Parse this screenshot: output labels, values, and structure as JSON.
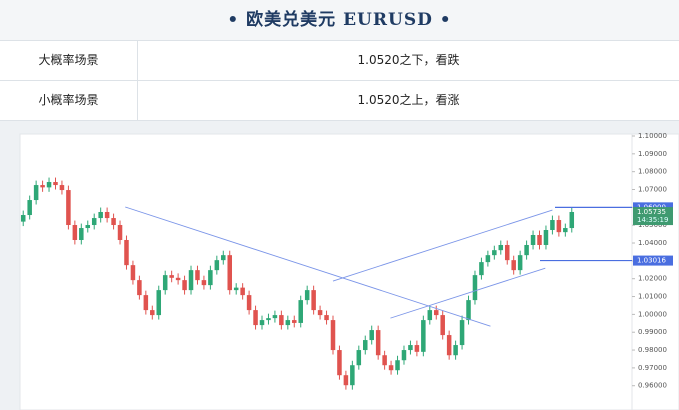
{
  "header": {
    "title": "• 欧美兑美元  EURUSD •"
  },
  "table": {
    "rows": [
      [
        "大概率场景",
        "1.0520之下，看跌"
      ],
      [
        "小概率场景",
        "1.0520之上，看涨"
      ]
    ]
  },
  "chart_data": {
    "type": "candlestick",
    "open": [
      1.052,
      1.0557,
      1.0641,
      1.0725,
      1.0712,
      1.0742,
      1.0725,
      1.0697,
      1.0501,
      1.0417,
      1.0484,
      1.0501,
      1.054,
      1.0574,
      1.054,
      1.0501,
      1.0417,
      1.0276,
      1.0192,
      1.0108,
      1.0024,
      0.9996,
      1.0136,
      1.022,
      1.0205,
      1.0192,
      1.0136,
      1.0248,
      1.0192,
      1.0164,
      1.0248,
      1.0304,
      1.0332,
      1.0136,
      1.015,
      1.0108,
      1.0024,
      0.994,
      0.9968,
      0.9979,
      0.9996,
      0.994,
      0.9968,
      0.9952,
      1.008,
      1.0136,
      1.0024,
      0.9996,
      0.9968,
      0.98,
      0.9659,
      0.9603,
      0.9715,
      0.98,
      0.9856,
      0.9912,
      0.9771,
      0.9715,
      0.9687,
      0.9743,
      0.98,
      0.9828,
      0.979,
      0.9968,
      1.0024,
      0.9996,
      0.9884,
      0.9771,
      0.9828,
      0.9968,
      1.008,
      1.022,
      1.0293,
      1.0332,
      1.036,
      1.0389,
      1.0304,
      1.0248,
      1.0332,
      1.0389,
      1.0445,
      1.0389,
      1.0473,
      1.0529,
      1.0461,
      1.0484
    ],
    "high": [
      1.0582,
      1.0666,
      1.075,
      1.075,
      1.0767,
      1.0767,
      1.075,
      1.0722,
      1.0526,
      1.0509,
      1.0526,
      1.0565,
      1.0599,
      1.0599,
      1.0565,
      1.0526,
      1.0442,
      1.0301,
      1.0217,
      1.0133,
      1.0049,
      1.0161,
      1.0245,
      1.0245,
      1.023,
      1.0217,
      1.0273,
      1.0273,
      1.0217,
      1.0273,
      1.0329,
      1.0357,
      1.0357,
      1.0175,
      1.0175,
      1.0133,
      1.0049,
      0.9993,
      1.0004,
      1.0021,
      1.0021,
      0.9993,
      0.9993,
      1.0105,
      1.0161,
      1.0161,
      1.0049,
      1.0021,
      0.9993,
      0.9825,
      0.9684,
      0.974,
      0.9825,
      0.9881,
      0.9937,
      0.9937,
      0.9796,
      0.974,
      0.9768,
      0.9825,
      0.9853,
      0.9853,
      0.9993,
      1.0049,
      1.0049,
      1.0021,
      0.9909,
      0.9853,
      0.9993,
      1.0105,
      1.0245,
      1.0318,
      1.0357,
      1.0385,
      1.0414,
      1.0414,
      1.0329,
      1.0357,
      1.0414,
      1.047,
      1.047,
      1.0498,
      1.0554,
      1.0554,
      1.0509,
      1.0599
    ],
    "low": [
      1.0495,
      1.0532,
      1.0616,
      1.0687,
      1.0687,
      1.07,
      1.0672,
      1.0476,
      1.0392,
      1.0392,
      1.0459,
      1.0476,
      1.0515,
      1.0515,
      1.0476,
      1.0392,
      1.0251,
      1.0167,
      1.0083,
      0.9999,
      0.9971,
      0.9971,
      1.0111,
      1.018,
      1.0167,
      1.0111,
      1.0111,
      1.0167,
      1.0139,
      1.0139,
      1.0223,
      1.0279,
      1.0111,
      1.0111,
      1.0083,
      0.9999,
      0.9915,
      0.9915,
      0.9943,
      0.9954,
      0.9915,
      0.9915,
      0.9927,
      0.9927,
      1.0055,
      0.9999,
      0.9971,
      0.9943,
      0.9775,
      0.9634,
      0.9578,
      0.9578,
      0.969,
      0.9775,
      0.9831,
      0.9746,
      0.969,
      0.9662,
      0.9662,
      0.9718,
      0.9775,
      0.9765,
      0.9765,
      0.9943,
      0.9971,
      0.9859,
      0.9746,
      0.9746,
      0.9803,
      0.9943,
      1.0055,
      1.0195,
      1.0268,
      1.0307,
      1.0335,
      1.0279,
      1.0223,
      1.0223,
      1.0307,
      1.0364,
      1.0364,
      1.0364,
      1.0448,
      1.0436,
      1.0436,
      1.0459
    ],
    "close": [
      1.0557,
      1.0641,
      1.0725,
      1.0712,
      1.0742,
      1.0725,
      1.0697,
      1.0501,
      1.0417,
      1.0484,
      1.0501,
      1.054,
      1.0574,
      1.054,
      1.0501,
      1.0417,
      1.0276,
      1.0192,
      1.0108,
      1.0024,
      0.9996,
      1.0136,
      1.022,
      1.0205,
      1.0192,
      1.0136,
      1.0248,
      1.0192,
      1.0164,
      1.0248,
      1.0304,
      1.0332,
      1.0136,
      1.015,
      1.0108,
      1.0024,
      0.994,
      0.9968,
      0.9979,
      0.9996,
      0.994,
      0.9968,
      0.9952,
      1.008,
      1.0136,
      1.0024,
      0.9996,
      0.9968,
      0.98,
      0.9659,
      0.9603,
      0.9715,
      0.98,
      0.9856,
      0.9912,
      0.9771,
      0.9715,
      0.9687,
      0.9743,
      0.98,
      0.9828,
      0.979,
      0.9968,
      1.0024,
      0.9996,
      0.9884,
      0.9771,
      0.9828,
      0.9968,
      1.008,
      1.022,
      1.0293,
      1.0332,
      1.036,
      1.0389,
      1.0304,
      1.0248,
      1.0332,
      1.0389,
      1.0445,
      1.0389,
      1.0473,
      1.0529,
      1.0461,
      1.0484,
      1.0574
    ],
    "up_color": "#2ea776",
    "down_color": "#e0534f",
    "ylim": [
      0.952,
      1.1
    ],
    "yticks": [
      {
        "value": 0.96,
        "label": "0.96000"
      },
      {
        "value": 0.97,
        "label": "0.97000"
      },
      {
        "value": 0.98,
        "label": "0.98000"
      },
      {
        "value": 0.99,
        "label": "0.99000"
      },
      {
        "value": 1.0,
        "label": "1.00000"
      },
      {
        "value": 1.01,
        "label": "1.01000"
      },
      {
        "value": 1.02,
        "label": "1.02000"
      },
      {
        "value": 1.03,
        "label": "1.03000"
      },
      {
        "value": 1.04,
        "label": "1.04000"
      },
      {
        "value": 1.05,
        "label": "1.05000"
      },
      {
        "value": 1.06,
        "label": "1.06000"
      },
      {
        "value": 1.07,
        "label": "1.07000"
      },
      {
        "value": 1.08,
        "label": "1.08000"
      },
      {
        "value": 1.09,
        "label": "1.09000"
      },
      {
        "value": 1.1,
        "label": "1.10000"
      }
    ],
    "trend_lines": [
      {
        "x": [
          15.8,
          72.4
        ],
        "y": [
          1.0602,
          0.9934
        ]
      },
      {
        "x": [
          48,
          82
        ],
        "y": [
          1.0187,
          1.0585
        ]
      },
      {
        "x": [
          56.9,
          80.9
        ],
        "y": [
          0.9979,
          1.0259
        ]
      }
    ],
    "trend_color": "#7b95e8",
    "price_lines": [
      {
        "value": 1.06,
        "label": "1.06000"
      },
      {
        "value": 1.03016,
        "label": "1.03016"
      }
    ],
    "price_line_color": "#4a6ee0",
    "last_price": {
      "value": 1.05735,
      "label": "1.05735",
      "time": "14:35:19",
      "color": "#3f9a70"
    }
  }
}
